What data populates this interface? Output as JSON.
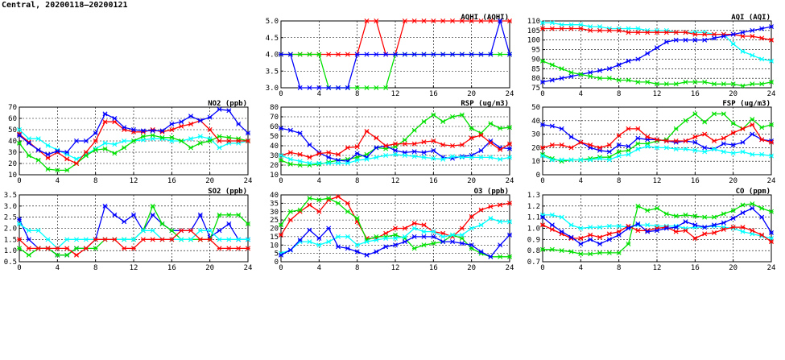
{
  "header": {
    "title": "Central, 20200118–20200121"
  },
  "colors": {
    "red": "#ff0000",
    "blue": "#0000ff",
    "green": "#00e000",
    "cyan": "#00ffff"
  },
  "chart_data": [
    {
      "id": "aqhi",
      "type": "line",
      "title": "AQHI (AQHI)",
      "xlim": [
        0,
        24
      ],
      "ylim": [
        3.0,
        5.0
      ],
      "xticks": [
        0,
        4,
        8,
        12,
        16,
        20,
        24
      ],
      "yticks": [
        3.0,
        3.5,
        4.0,
        4.5,
        5.0
      ],
      "ytick_labels": [
        "3.0",
        "3.5",
        "4.0",
        "4.5",
        "5.0"
      ],
      "grid": true,
      "series": [
        {
          "color": "red",
          "values": [
            4,
            4,
            4,
            4,
            4,
            4,
            4,
            4,
            4,
            5,
            5,
            4,
            4,
            5,
            5,
            5,
            5,
            5,
            5,
            5,
            5,
            5,
            5,
            5,
            5
          ]
        },
        {
          "color": "green",
          "values": [
            4,
            4,
            4,
            4,
            4,
            3,
            3,
            3,
            3,
            3,
            3,
            3,
            4,
            4,
            4,
            4,
            4,
            4,
            4,
            4,
            4,
            4,
            4,
            4,
            4
          ]
        },
        {
          "color": "blue",
          "values": [
            4,
            4,
            3,
            3,
            3,
            3,
            3,
            3,
            4,
            4,
            4,
            4,
            4,
            4,
            4,
            4,
            4,
            4,
            4,
            4,
            4,
            4,
            4,
            5,
            4
          ]
        }
      ]
    },
    {
      "id": "aqi",
      "type": "line",
      "title": "AQI (AQI)",
      "xlim": [
        0,
        24
      ],
      "ylim": [
        75,
        110
      ],
      "xticks": [
        0,
        4,
        8,
        12,
        16,
        20,
        24
      ],
      "yticks": [
        75,
        80,
        85,
        90,
        95,
        100,
        105,
        110
      ],
      "ytick_labels": [
        "75",
        "80",
        "85",
        "90",
        "95",
        "100",
        "105",
        "110"
      ],
      "grid": true,
      "series": [
        {
          "color": "cyan",
          "values": [
            109,
            109,
            108,
            108,
            108,
            107,
            107,
            106,
            106,
            106,
            106,
            105,
            105,
            105,
            104,
            104,
            104,
            104,
            103,
            103,
            98,
            94,
            92,
            90,
            89
          ]
        },
        {
          "color": "red",
          "values": [
            106,
            106,
            106,
            106,
            106,
            105,
            105,
            105,
            105,
            104,
            104,
            104,
            104,
            104,
            104,
            104,
            103,
            103,
            103,
            103,
            103,
            102,
            102,
            101,
            100
          ]
        },
        {
          "color": "blue",
          "values": [
            78,
            79,
            80,
            81,
            82,
            83,
            84,
            85,
            87,
            89,
            90,
            93,
            96,
            99,
            100,
            100,
            100,
            100,
            101,
            102,
            103,
            104,
            105,
            106,
            107
          ]
        },
        {
          "color": "green",
          "values": [
            89,
            87,
            85,
            83,
            82,
            81,
            80,
            80,
            79,
            79,
            78,
            78,
            77,
            77,
            77,
            78,
            78,
            78,
            77,
            77,
            77,
            76,
            77,
            77,
            78
          ]
        }
      ]
    },
    {
      "id": "no2",
      "type": "line",
      "title": "NO2 (ppb)",
      "xlim": [
        0,
        24
      ],
      "ylim": [
        10,
        70
      ],
      "xticks": [
        0,
        4,
        8,
        12,
        16,
        20,
        24
      ],
      "yticks": [
        10,
        20,
        30,
        40,
        50,
        60,
        70
      ],
      "ytick_labels": [
        "10",
        "20",
        "30",
        "40",
        "50",
        "60",
        "70"
      ],
      "grid": true,
      "series": [
        {
          "color": "cyan",
          "values": [
            50,
            42,
            42,
            36,
            32,
            28,
            24,
            28,
            33,
            38,
            37,
            40,
            40,
            41,
            42,
            42,
            40,
            40,
            42,
            44,
            42,
            34,
            38,
            38,
            40
          ]
        },
        {
          "color": "green",
          "values": [
            38,
            27,
            23,
            15,
            14,
            14,
            20,
            27,
            32,
            33,
            29,
            34,
            40,
            44,
            45,
            43,
            43,
            40,
            34,
            38,
            40,
            44,
            43,
            42,
            40
          ]
        },
        {
          "color": "red",
          "values": [
            46,
            39,
            32,
            25,
            30,
            24,
            20,
            30,
            40,
            57,
            57,
            50,
            48,
            48,
            50,
            48,
            50,
            53,
            55,
            58,
            50,
            40,
            40,
            40,
            40
          ]
        },
        {
          "color": "blue",
          "values": [
            45,
            38,
            32,
            28,
            31,
            30,
            40,
            40,
            47,
            64,
            60,
            52,
            50,
            49,
            49,
            49,
            55,
            57,
            62,
            58,
            61,
            68,
            67,
            55,
            47
          ]
        }
      ]
    },
    {
      "id": "rsp",
      "type": "line",
      "title": "RSP (ug/m3)",
      "xlim": [
        0,
        24
      ],
      "ylim": [
        10,
        80
      ],
      "xticks": [
        0,
        4,
        8,
        12,
        16,
        20,
        24
      ],
      "yticks": [
        10,
        20,
        30,
        40,
        50,
        60,
        70,
        80
      ],
      "ytick_labels": [
        "10",
        "20",
        "30",
        "40",
        "50",
        "60",
        "70",
        "80"
      ],
      "grid": true,
      "series": [
        {
          "color": "green",
          "values": [
            25,
            21,
            20,
            20,
            21,
            23,
            25,
            26,
            28,
            31,
            38,
            37,
            39,
            46,
            56,
            65,
            72,
            65,
            70,
            72,
            58,
            53,
            63,
            58,
            59
          ]
        },
        {
          "color": "blue",
          "values": [
            58,
            56,
            53,
            41,
            33,
            28,
            25,
            24,
            32,
            28,
            38,
            40,
            35,
            33,
            34,
            33,
            35,
            28,
            27,
            29,
            30,
            35,
            45,
            38,
            37
          ]
        },
        {
          "color": "red",
          "values": [
            30,
            33,
            31,
            28,
            32,
            33,
            31,
            38,
            39,
            55,
            48,
            40,
            42,
            42,
            42,
            44,
            45,
            41,
            40,
            41,
            48,
            51,
            43,
            36,
            42
          ]
        },
        {
          "color": "cyan",
          "values": [
            30,
            26,
            24,
            22,
            22,
            22,
            22,
            22,
            25,
            26,
            28,
            30,
            31,
            30,
            29,
            28,
            27,
            26,
            29,
            28,
            28,
            28,
            28,
            26,
            28
          ]
        }
      ]
    },
    {
      "id": "fsp",
      "type": "line",
      "title": "FSP (ug/m3)",
      "xlim": [
        0,
        24
      ],
      "ylim": [
        0,
        50
      ],
      "xticks": [
        0,
        4,
        8,
        12,
        16,
        20,
        24
      ],
      "yticks": [
        0,
        10,
        20,
        30,
        40,
        50
      ],
      "ytick_labels": [
        "0",
        "10",
        "20",
        "30",
        "40",
        "50"
      ],
      "grid": true,
      "series": [
        {
          "color": "green",
          "values": [
            15,
            12,
            10,
            11,
            11,
            12,
            13,
            13,
            17,
            18,
            23,
            23,
            25,
            26,
            34,
            40,
            45,
            39,
            45,
            45,
            38,
            34,
            41,
            35,
            37
          ]
        },
        {
          "color": "blue",
          "values": [
            37,
            36,
            34,
            28,
            24,
            20,
            18,
            17,
            22,
            21,
            27,
            26,
            26,
            25,
            24,
            25,
            24,
            20,
            19,
            23,
            22,
            24,
            30,
            26,
            25
          ]
        },
        {
          "color": "red",
          "values": [
            20,
            22,
            22,
            20,
            24,
            22,
            20,
            22,
            29,
            34,
            34,
            28,
            26,
            25,
            25,
            25,
            28,
            30,
            25,
            27,
            31,
            34,
            37,
            26,
            24
          ]
        },
        {
          "color": "cyan",
          "values": [
            14,
            11,
            11,
            11,
            11,
            11,
            12,
            11,
            14,
            15,
            19,
            21,
            20,
            20,
            19,
            19,
            18,
            17,
            19,
            17,
            16,
            17,
            15,
            15,
            14
          ]
        }
      ]
    },
    {
      "id": "so2",
      "type": "line",
      "title": "SO2 (ppb)",
      "xlim": [
        0,
        24
      ],
      "ylim": [
        0.5,
        3.5
      ],
      "xticks": [
        0,
        4,
        8,
        12,
        16,
        20,
        24
      ],
      "yticks": [
        0.5,
        1.0,
        1.5,
        2.0,
        2.5,
        3.0,
        3.5
      ],
      "ytick_labels": [
        "0.5",
        "1.0",
        "1.5",
        "2.0",
        "2.5",
        "3.0",
        "3.5"
      ],
      "grid": true,
      "series": [
        {
          "color": "blue",
          "values": [
            2.4,
            1.5,
            1.1,
            1.1,
            0.8,
            0.8,
            1.1,
            1.1,
            1.5,
            3.0,
            2.6,
            2.3,
            2.6,
            1.9,
            2.6,
            2.2,
            1.9,
            1.9,
            1.9,
            2.6,
            1.6,
            1.9,
            2.2,
            1.5,
            1.5
          ]
        },
        {
          "color": "green",
          "values": [
            1.1,
            0.8,
            1.1,
            1.1,
            0.8,
            0.8,
            1.1,
            1.1,
            1.1,
            1.5,
            1.5,
            1.5,
            1.5,
            1.9,
            3.0,
            2.2,
            1.9,
            1.5,
            1.5,
            1.5,
            1.5,
            2.6,
            2.6,
            2.6,
            2.2
          ]
        },
        {
          "color": "cyan",
          "values": [
            2.2,
            1.9,
            1.9,
            1.5,
            1.1,
            1.5,
            1.5,
            1.5,
            1.5,
            1.5,
            1.5,
            1.5,
            1.5,
            1.9,
            1.9,
            1.5,
            1.5,
            1.5,
            1.5,
            1.9,
            1.9,
            1.5,
            1.5,
            1.5,
            1.5
          ]
        },
        {
          "color": "red",
          "values": [
            1.5,
            1.1,
            1.1,
            1.1,
            1.1,
            1.1,
            0.8,
            1.1,
            1.5,
            1.5,
            1.5,
            1.1,
            1.1,
            1.5,
            1.5,
            1.5,
            1.5,
            1.9,
            1.9,
            1.5,
            1.5,
            1.1,
            1.1,
            1.1,
            1.1
          ]
        }
      ]
    },
    {
      "id": "o3",
      "type": "line",
      "title": "O3 (ppb)",
      "xlim": [
        0,
        24
      ],
      "ylim": [
        0,
        40
      ],
      "xticks": [
        0,
        4,
        8,
        12,
        16,
        20,
        24
      ],
      "yticks": [
        0,
        5,
        10,
        15,
        20,
        25,
        30,
        35,
        40
      ],
      "ytick_labels": [
        "0",
        "5",
        "10",
        "15",
        "20",
        "25",
        "30",
        "35",
        "40"
      ],
      "grid": true,
      "series": [
        {
          "color": "red",
          "values": [
            16,
            25,
            30,
            34,
            30,
            37,
            39,
            35,
            24,
            14,
            14,
            17,
            20,
            20,
            23,
            22,
            18,
            17,
            15,
            20,
            27,
            31,
            33,
            34,
            35
          ]
        },
        {
          "color": "green",
          "values": [
            22,
            30,
            31,
            38,
            37,
            38,
            35,
            30,
            26,
            13,
            15,
            15,
            16,
            14,
            8,
            10,
            11,
            12,
            16,
            14,
            8,
            5,
            3,
            3,
            3
          ]
        },
        {
          "color": "cyan",
          "values": [
            5,
            7,
            12,
            12,
            10,
            12,
            15,
            15,
            10,
            12,
            13,
            14,
            14,
            15,
            20,
            18,
            18,
            15,
            16,
            16,
            20,
            22,
            26,
            24,
            24
          ]
        },
        {
          "color": "blue",
          "values": [
            4,
            7,
            13,
            19,
            14,
            20,
            9,
            8,
            6,
            4,
            6,
            9,
            10,
            12,
            15,
            15,
            15,
            12,
            12,
            11,
            10,
            6,
            3,
            10,
            16
          ]
        }
      ]
    },
    {
      "id": "co",
      "type": "line",
      "title": "CO (ppm)",
      "xlim": [
        0,
        24
      ],
      "ylim": [
        0.7,
        1.3
      ],
      "xticks": [
        0,
        4,
        8,
        12,
        16,
        20,
        24
      ],
      "yticks": [
        0.7,
        0.8,
        0.9,
        1.0,
        1.1,
        1.2,
        1.3
      ],
      "ytick_labels": [
        "0.7",
        "0.8",
        "0.9",
        "1.0",
        "1.1",
        "1.2",
        "1.3"
      ],
      "grid": true,
      "series": [
        {
          "color": "cyan",
          "values": [
            1.12,
            1.12,
            1.1,
            1.03,
            1.0,
            1.01,
            1.01,
            1.02,
            1.02,
            1.01,
            1.03,
            1.03,
            1.02,
            1.02,
            1.02,
            1.0,
            1.01,
            1.01,
            1.02,
            1.01,
            1.0,
            0.97,
            0.95,
            0.93,
            0.91
          ]
        },
        {
          "color": "green",
          "values": [
            0.81,
            0.81,
            0.8,
            0.79,
            0.77,
            0.77,
            0.78,
            0.78,
            0.78,
            0.86,
            1.2,
            1.16,
            1.18,
            1.13,
            1.11,
            1.12,
            1.11,
            1.1,
            1.1,
            1.13,
            1.16,
            1.21,
            1.22,
            1.18,
            1.15
          ]
        },
        {
          "color": "red",
          "values": [
            1.03,
            0.99,
            0.95,
            0.91,
            0.91,
            0.94,
            0.92,
            0.95,
            0.97,
            1.02,
            0.98,
            0.98,
            1.0,
            1.01,
            0.97,
            0.98,
            0.91,
            0.95,
            0.96,
            0.99,
            1.01,
            1.01,
            0.98,
            0.94,
            0.88
          ]
        },
        {
          "color": "blue",
          "values": [
            1.1,
            1.03,
            0.97,
            0.92,
            0.86,
            0.9,
            0.86,
            0.9,
            0.94,
            1.0,
            1.04,
            0.97,
            0.98,
            1.0,
            1.01,
            1.06,
            1.03,
            1.01,
            1.03,
            1.05,
            1.09,
            1.14,
            1.18,
            1.1,
            0.96
          ]
        }
      ]
    }
  ]
}
